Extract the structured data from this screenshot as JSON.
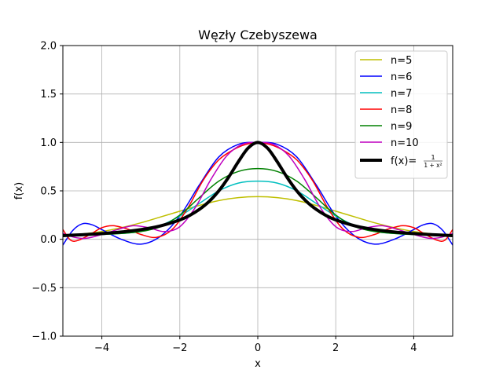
{
  "chart_data": {
    "type": "line",
    "title": "Węzły Czebyszewa",
    "xlabel": "x",
    "ylabel": "f(x)",
    "xlim": [
      -5,
      5
    ],
    "ylim": [
      -1.0,
      2.0
    ],
    "grid": true,
    "legend_position": "top-right",
    "x_ticks": [
      -4,
      -2,
      0,
      2,
      4
    ],
    "x_tick_labels": [
      "−4",
      "−2",
      "0",
      "2",
      "4"
    ],
    "y_ticks": [
      -1.0,
      -0.5,
      0.0,
      0.5,
      1.0,
      1.5,
      2.0
    ],
    "y_tick_labels": [
      "−1.0",
      "−0.5",
      "0.0",
      "0.5",
      "1.0",
      "1.5",
      "2.0"
    ],
    "series": [
      {
        "name": "n=5",
        "color": "#bfbf00",
        "linewidth": 1.5,
        "x": [
          -5,
          -4.5,
          -4,
          -3.5,
          -3,
          -2.5,
          -2,
          -1.5,
          -1,
          -0.5,
          0,
          0.5,
          1,
          1.5,
          2,
          2.5,
          3,
          3.5,
          4,
          4.5,
          5
        ],
        "y": [
          0.04,
          0.055,
          0.08,
          0.12,
          0.17,
          0.23,
          0.29,
          0.35,
          0.4,
          0.43,
          0.44,
          0.43,
          0.4,
          0.35,
          0.29,
          0.23,
          0.17,
          0.12,
          0.08,
          0.055,
          0.04
        ]
      },
      {
        "name": "n=6",
        "color": "#0000ff",
        "linewidth": 1.5,
        "x": [
          -5,
          -4.75,
          -4.5,
          -4.25,
          -4,
          -3.5,
          -3,
          -2.5,
          -2,
          -1.5,
          -1,
          -0.5,
          0,
          0.5,
          1,
          1.5,
          2,
          2.5,
          3,
          3.5,
          4,
          4.25,
          4.5,
          4.75,
          5
        ],
        "y": [
          -0.06,
          0.09,
          0.16,
          0.15,
          0.1,
          0.0,
          -0.05,
          0.03,
          0.24,
          0.56,
          0.85,
          0.98,
          1.0,
          0.98,
          0.85,
          0.56,
          0.24,
          0.03,
          -0.05,
          0.0,
          0.1,
          0.15,
          0.16,
          0.09,
          -0.06
        ]
      },
      {
        "name": "n=7",
        "color": "#00bfbf",
        "linewidth": 1.5,
        "x": [
          -5,
          -4.5,
          -4,
          -3.5,
          -3,
          -2.5,
          -2,
          -1.5,
          -1,
          -0.5,
          0,
          0.5,
          1,
          1.5,
          2,
          2.5,
          3,
          3.5,
          4,
          4.5,
          5
        ],
        "y": [
          0.04,
          0.05,
          0.05,
          0.06,
          0.08,
          0.14,
          0.24,
          0.37,
          0.5,
          0.58,
          0.6,
          0.58,
          0.5,
          0.37,
          0.24,
          0.14,
          0.08,
          0.06,
          0.05,
          0.05,
          0.04
        ]
      },
      {
        "name": "n=8",
        "color": "#ff0000",
        "linewidth": 1.5,
        "x": [
          -5,
          -4.8,
          -4.6,
          -4.3,
          -4,
          -3.7,
          -3.3,
          -3,
          -2.6,
          -2.2,
          -1.8,
          -1.4,
          -1,
          -0.6,
          -0.3,
          0,
          0.3,
          0.6,
          1,
          1.4,
          1.8,
          2.2,
          2.6,
          3,
          3.3,
          3.7,
          4,
          4.3,
          4.6,
          4.8,
          5
        ],
        "y": [
          0.1,
          -0.01,
          -0.01,
          0.05,
          0.12,
          0.14,
          0.1,
          0.05,
          0.02,
          0.1,
          0.32,
          0.61,
          0.82,
          0.93,
          0.98,
          1.0,
          0.98,
          0.93,
          0.82,
          0.61,
          0.32,
          0.1,
          0.02,
          0.05,
          0.1,
          0.14,
          0.12,
          0.05,
          -0.01,
          -0.01,
          0.1
        ]
      },
      {
        "name": "n=9",
        "color": "#008000",
        "linewidth": 1.5,
        "x": [
          -5,
          -4.5,
          -4,
          -3.5,
          -3,
          -2.5,
          -2,
          -1.5,
          -1,
          -0.5,
          0,
          0.5,
          1,
          1.5,
          2,
          2.5,
          3,
          3.5,
          4,
          4.5,
          5
        ],
        "y": [
          0.04,
          0.05,
          0.05,
          0.06,
          0.08,
          0.13,
          0.25,
          0.43,
          0.6,
          0.7,
          0.73,
          0.7,
          0.6,
          0.43,
          0.25,
          0.13,
          0.08,
          0.06,
          0.05,
          0.05,
          0.04
        ]
      },
      {
        "name": "n=10",
        "color": "#bf00bf",
        "linewidth": 1.5,
        "x": [
          -5,
          -4.7,
          -4.4,
          -4,
          -3.6,
          -3.2,
          -2.8,
          -2.4,
          -2,
          -1.6,
          -1.2,
          -0.8,
          -0.4,
          0,
          0.4,
          0.8,
          1.2,
          1.6,
          2,
          2.4,
          2.8,
          3.2,
          3.6,
          4,
          4.4,
          4.7,
          5
        ],
        "y": [
          0.06,
          0.02,
          0.01,
          0.05,
          0.1,
          0.14,
          0.12,
          0.08,
          0.13,
          0.33,
          0.62,
          0.86,
          0.98,
          1.0,
          0.98,
          0.86,
          0.62,
          0.33,
          0.13,
          0.08,
          0.12,
          0.14,
          0.1,
          0.05,
          0.01,
          0.02,
          0.06
        ]
      },
      {
        "name": "f(x)=1/(1+x²)",
        "color": "#000000",
        "linewidth": 4,
        "is_function": true,
        "x": [
          -5,
          -4.5,
          -4,
          -3.5,
          -3,
          -2.5,
          -2,
          -1.75,
          -1.5,
          -1.25,
          -1,
          -0.75,
          -0.5,
          -0.25,
          0,
          0.25,
          0.5,
          0.75,
          1,
          1.25,
          1.5,
          1.75,
          2,
          2.5,
          3,
          3.5,
          4,
          4.5,
          5
        ],
        "y": [
          0.038,
          0.047,
          0.059,
          0.075,
          0.1,
          0.138,
          0.2,
          0.246,
          0.308,
          0.39,
          0.5,
          0.64,
          0.8,
          0.941,
          1.0,
          0.941,
          0.8,
          0.64,
          0.5,
          0.39,
          0.308,
          0.246,
          0.2,
          0.138,
          0.1,
          0.075,
          0.059,
          0.047,
          0.038
        ]
      }
    ],
    "legend": {
      "labels": [
        "n=5",
        "n=6",
        "n=7",
        "n=8",
        "n=9",
        "n=10"
      ],
      "function_label_prefix": "f(x)=",
      "function_label_numerator": "1",
      "function_label_denominator": "1 + x²"
    }
  }
}
